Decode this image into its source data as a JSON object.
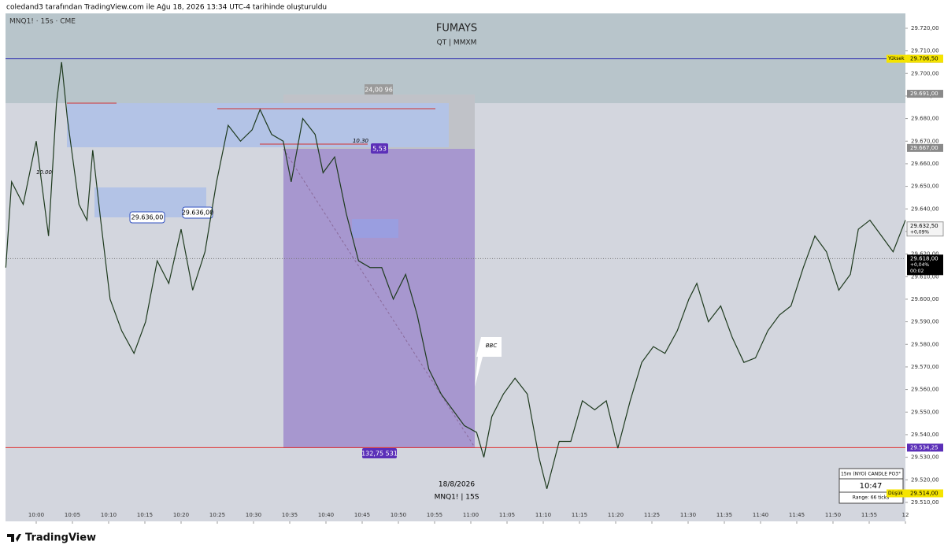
{
  "header": {
    "text": "coledand3 tarafından TradingView.com ile Ağu 18, 2026 13:34 UTC-4 tarihinde oluşturuldu"
  },
  "chart_data": {
    "type": "line",
    "symbol": "MNQ1! · 15s · CME",
    "title": "FUMAYS",
    "subtitle": "QT  |  MMXM",
    "watermark": [
      "18/8/2026",
      "MNQ1! | 15S"
    ],
    "color": "#1e3a1e",
    "x": [
      595.8,
      596.6,
      598.2,
      600,
      601.7,
      602.8,
      603.5,
      604.3,
      605.9,
      607,
      607.8,
      608.9,
      610.2,
      611.8,
      613.5,
      615.1,
      616.7,
      618.3,
      620,
      621.6,
      623.3,
      624.9,
      626.5,
      628.2,
      629.8,
      630.9,
      632.5,
      634.1,
      635.2,
      636.8,
      638.5,
      639.6,
      641.2,
      642.8,
      644.5,
      646.1,
      647.7,
      649.3,
      651,
      652.6,
      654.2,
      655.9,
      657.5,
      659.1,
      660.8,
      661.8,
      662.9,
      664.5,
      666.1,
      667.8,
      669.4,
      670.5,
      672.2,
      673.8,
      675.4,
      677.1,
      678.7,
      680.3,
      682,
      683.6,
      685.2,
      686.8,
      688.5,
      690.1,
      691.2,
      692.8,
      694.5,
      696.1,
      697.7,
      699.3,
      701,
      702.6,
      704.2,
      705.9,
      707.5,
      709.1,
      710.8,
      712.4,
      713.5,
      715.1,
      716.7,
      718.3,
      720
    ],
    "values": [
      29614,
      29652,
      29642,
      29670,
      29628,
      29687,
      29705,
      29680,
      29642,
      29635,
      29666,
      29635,
      29600,
      29586,
      29576,
      29590,
      29617,
      29607,
      29631,
      29604,
      29621,
      29652,
      29677,
      29670,
      29675,
      29684,
      29673,
      29670,
      29652,
      29680,
      29673,
      29656,
      29663,
      29638,
      29617,
      29614,
      29614,
      29600,
      29611,
      29593,
      29569,
      29558,
      29551,
      29544,
      29541,
      29530,
      29548,
      29558,
      29565,
      29558,
      29530,
      29516,
      29537,
      29537,
      29555,
      29551,
      29555,
      29534,
      29555,
      29572,
      29579,
      29576,
      29586,
      29600,
      29607,
      29590,
      29597,
      29583,
      29572,
      29574,
      29586,
      29593,
      29597,
      29614,
      29628,
      29621,
      29604,
      29611,
      29631,
      29635,
      29628,
      29621,
      29635
    ],
    "xlim": [
      595.76,
      720
    ],
    "xticks": [
      {
        "value": 600,
        "label": "10:00"
      },
      {
        "value": 605,
        "label": "10:05"
      },
      {
        "value": 610,
        "label": "10:10"
      },
      {
        "value": 615,
        "label": "10:15"
      },
      {
        "value": 620,
        "label": "10:20"
      },
      {
        "value": 625,
        "label": "10:25"
      },
      {
        "value": 630,
        "label": "10:30"
      },
      {
        "value": 635,
        "label": "10:35"
      },
      {
        "value": 640,
        "label": "10:40"
      },
      {
        "value": 645,
        "label": "10:45"
      },
      {
        "value": 650,
        "label": "10:50"
      },
      {
        "value": 655,
        "label": "10:55"
      },
      {
        "value": 660,
        "label": "11:00"
      },
      {
        "value": 665,
        "label": "11:05"
      },
      {
        "value": 670,
        "label": "11:10"
      },
      {
        "value": 675,
        "label": "11:15"
      },
      {
        "value": 680,
        "label": "11:20"
      },
      {
        "value": 685,
        "label": "11:25"
      },
      {
        "value": 690,
        "label": "11:30"
      },
      {
        "value": 695,
        "label": "11:35"
      },
      {
        "value": 700,
        "label": "11:40"
      },
      {
        "value": 705,
        "label": "11:45"
      },
      {
        "value": 710,
        "label": "11:50"
      },
      {
        "value": 715,
        "label": "11:55"
      },
      {
        "value": 720,
        "label": "12"
      }
    ],
    "ylim": [
      29501.6,
      29726.6
    ],
    "yticks": [
      {
        "value": 29510,
        "label": "29.510,00"
      },
      {
        "value": 29520,
        "label": "29.520,00"
      },
      {
        "value": 29530,
        "label": "29.530,00"
      },
      {
        "value": 29540,
        "label": "29.540,00"
      },
      {
        "value": 29550,
        "label": "29.550,00"
      },
      {
        "value": 29560,
        "label": "29.560,00"
      },
      {
        "value": 29570,
        "label": "29.570,00"
      },
      {
        "value": 29580,
        "label": "29.580,00"
      },
      {
        "value": 29590,
        "label": "29.590,00"
      },
      {
        "value": 29600,
        "label": "29.600,00"
      },
      {
        "value": 29610,
        "label": "29.610,00"
      },
      {
        "value": 29620,
        "label": "29.620,00"
      },
      {
        "value": 29630,
        "label": "29.630,00"
      },
      {
        "value": 29640,
        "label": "29.640,00"
      },
      {
        "value": 29650,
        "label": "29.650,00"
      },
      {
        "value": 29660,
        "label": "29.660,00"
      },
      {
        "value": 29670,
        "label": "29.670,00"
      },
      {
        "value": 29680,
        "label": "29.680,00"
      },
      {
        "value": 29690,
        "label": "29.690,00"
      },
      {
        "value": 29700,
        "label": "29.700,00"
      },
      {
        "value": 29710,
        "label": "29.710,00"
      },
      {
        "value": 29720,
        "label": "29.720,00"
      }
    ],
    "grid": false,
    "levels": [
      {
        "value": 29706.5,
        "color": "#3030b0",
        "style": "solid"
      },
      {
        "value": 29534.25,
        "color": "#e03030",
        "style": "solid"
      },
      {
        "value": 29618,
        "color": "#777777",
        "style": "dotted"
      }
    ],
    "price_tags": [
      {
        "value": 29706.5,
        "label": "29.706,50",
        "color": "#5b2fb8"
      },
      {
        "value": 29691,
        "label": "29.691,00",
        "color": "#8a8a8a"
      },
      {
        "value": 29667,
        "label": "29.667,00",
        "color": "#8a8a8a"
      },
      {
        "value": 29632.5,
        "label": "29.632,50",
        "change": "+0,09%",
        "color": "#f4f4f4"
      },
      {
        "value": 29618,
        "label": "29.618,00",
        "change": "+0,04%",
        "timer": "00:02",
        "color": "#000000"
      },
      {
        "value": 29534.25,
        "label": "29.534,25",
        "color": "#5b2fb8"
      }
    ],
    "side_tags": [
      {
        "value": 29706.5,
        "tag": "Yüksek",
        "label": "29.706,50"
      },
      {
        "value": 29514,
        "tag": "Düşük",
        "label": "29.514,00"
      }
    ],
    "annotations": {
      "range_top": "24,00 96",
      "level_a": "10.30",
      "move": "5,53",
      "level_b": "10.00",
      "price_a": "29.636,00",
      "price_b": "29.636,00",
      "bbc": "BBC",
      "range_bottom": "132,75 531"
    },
    "info_box": {
      "title": "15m (NYO) CANDLE PO3°",
      "time": "10:47",
      "range": "Range: 66 ticks"
    }
  },
  "footer": {
    "logo": "TradingView"
  }
}
